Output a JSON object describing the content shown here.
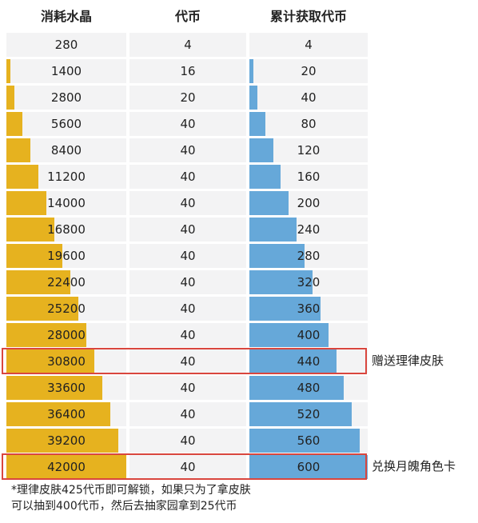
{
  "headers": {
    "crystals": "消耗水晶",
    "tokens": "代币",
    "cumulative": "累计获取代币"
  },
  "chart_data": {
    "type": "table",
    "columns": [
      "消耗水晶",
      "代币",
      "累计获取代币"
    ],
    "rows": [
      [
        280,
        4,
        4
      ],
      [
        1400,
        16,
        20
      ],
      [
        2800,
        20,
        40
      ],
      [
        5600,
        40,
        80
      ],
      [
        8400,
        40,
        120
      ],
      [
        11200,
        40,
        160
      ],
      [
        14000,
        40,
        200
      ],
      [
        16800,
        40,
        240
      ],
      [
        19600,
        40,
        280
      ],
      [
        22400,
        40,
        320
      ],
      [
        25200,
        40,
        360
      ],
      [
        28000,
        40,
        400
      ],
      [
        30800,
        40,
        440
      ],
      [
        33600,
        40,
        480
      ],
      [
        36400,
        40,
        520
      ],
      [
        39200,
        40,
        560
      ],
      [
        42000,
        40,
        600
      ]
    ],
    "crystals_max": 42000,
    "cumulative_max": 600
  },
  "highlights": [
    {
      "row": 12,
      "note": "赠送理律皮肤"
    },
    {
      "row": 16,
      "note": "兑换月魄角色卡"
    }
  ],
  "footnote": {
    "line1": "*理律皮肤425代币即可解锁，如果只为了拿皮肤",
    "line2": "可以抽到400代币，然后去抽家园拿到25代币"
  },
  "colors": {
    "gold_bar": "#e6b21f",
    "blue_bar": "#66a8d9",
    "cell_bg": "#f3f3f4",
    "highlight_border": "#d9463e"
  }
}
